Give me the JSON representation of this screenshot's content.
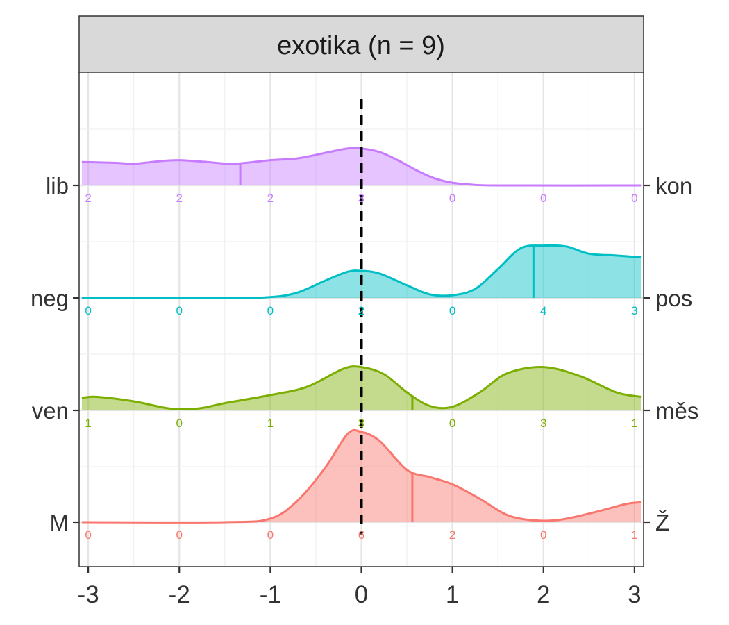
{
  "chart_data": {
    "type": "density-ridgeline",
    "title": "exotika (n = 9)",
    "xlim": [
      -3.1,
      3.1
    ],
    "x_ticks": [
      -3,
      -2,
      -1,
      0,
      1,
      2,
      3
    ],
    "x_tick_labels": [
      "-3",
      "-2",
      "-1",
      "0",
      "1",
      "2",
      "3"
    ],
    "reference_line_x": 0,
    "grid": true,
    "rows": [
      {
        "left_label": "lib",
        "right_label": "kon",
        "color": "#C77CFF",
        "mean": -1.33,
        "count_labels": [
          "2",
          "2",
          "2",
          "3",
          "0",
          "0",
          "0"
        ],
        "curve": [
          [
            -3.1,
            0.26
          ],
          [
            -2.7,
            0.25
          ],
          [
            -2.5,
            0.24
          ],
          [
            -2.2,
            0.27
          ],
          [
            -2.0,
            0.28
          ],
          [
            -1.7,
            0.26
          ],
          [
            -1.4,
            0.24
          ],
          [
            -1.0,
            0.28
          ],
          [
            -0.7,
            0.3
          ],
          [
            -0.4,
            0.36
          ],
          [
            -0.15,
            0.41
          ],
          [
            0,
            0.41
          ],
          [
            0.2,
            0.37
          ],
          [
            0.4,
            0.28
          ],
          [
            0.6,
            0.17
          ],
          [
            0.8,
            0.08
          ],
          [
            1.0,
            0.03
          ],
          [
            1.2,
            0.01
          ],
          [
            1.5,
            0.0
          ],
          [
            3.1,
            0.0
          ]
        ]
      },
      {
        "left_label": "neg",
        "right_label": "pos",
        "color": "#00BFC4",
        "mean": 1.89,
        "count_labels": [
          "0",
          "0",
          "0",
          "2",
          "0",
          "4",
          "3"
        ],
        "curve": [
          [
            -3.1,
            0.0
          ],
          [
            -1.5,
            0.0
          ],
          [
            -1.0,
            0.01
          ],
          [
            -0.7,
            0.06
          ],
          [
            -0.4,
            0.19
          ],
          [
            -0.15,
            0.29
          ],
          [
            0,
            0.3
          ],
          [
            0.2,
            0.27
          ],
          [
            0.5,
            0.14
          ],
          [
            0.75,
            0.04
          ],
          [
            1.0,
            0.03
          ],
          [
            1.25,
            0.1
          ],
          [
            1.5,
            0.32
          ],
          [
            1.75,
            0.55
          ],
          [
            2.0,
            0.58
          ],
          [
            2.25,
            0.57
          ],
          [
            2.5,
            0.49
          ],
          [
            2.8,
            0.47
          ],
          [
            3.1,
            0.45
          ]
        ]
      },
      {
        "left_label": "ven",
        "right_label": "měs",
        "color": "#7CAE00",
        "mean": 0.56,
        "count_labels": [
          "1",
          "0",
          "1",
          "3",
          "0",
          "3",
          "1"
        ],
        "curve": [
          [
            -3.1,
            0.14
          ],
          [
            -2.9,
            0.15
          ],
          [
            -2.5,
            0.1
          ],
          [
            -2.1,
            0.02
          ],
          [
            -1.8,
            0.02
          ],
          [
            -1.5,
            0.08
          ],
          [
            -1.0,
            0.17
          ],
          [
            -0.6,
            0.26
          ],
          [
            -0.2,
            0.46
          ],
          [
            0,
            0.48
          ],
          [
            0.25,
            0.4
          ],
          [
            0.5,
            0.2
          ],
          [
            0.75,
            0.05
          ],
          [
            1.0,
            0.04
          ],
          [
            1.3,
            0.2
          ],
          [
            1.6,
            0.41
          ],
          [
            2.0,
            0.48
          ],
          [
            2.4,
            0.38
          ],
          [
            2.8,
            0.2
          ],
          [
            3.1,
            0.15
          ]
        ]
      },
      {
        "left_label": "M",
        "right_label": "Ž",
        "color": "#F8766D",
        "mean": 0.56,
        "count_labels": [
          "0",
          "0",
          "0",
          "6",
          "2",
          "0",
          "1"
        ],
        "curve": [
          [
            -3.1,
            0.0
          ],
          [
            -1.5,
            0.0
          ],
          [
            -1.0,
            0.04
          ],
          [
            -0.7,
            0.24
          ],
          [
            -0.4,
            0.6
          ],
          [
            -0.15,
            0.98
          ],
          [
            0,
            1.0
          ],
          [
            0.2,
            0.9
          ],
          [
            0.5,
            0.58
          ],
          [
            0.75,
            0.5
          ],
          [
            1.0,
            0.42
          ],
          [
            1.3,
            0.26
          ],
          [
            1.6,
            0.08
          ],
          [
            1.9,
            0.02
          ],
          [
            2.2,
            0.03
          ],
          [
            2.6,
            0.12
          ],
          [
            2.9,
            0.2
          ],
          [
            3.1,
            0.22
          ]
        ]
      }
    ]
  }
}
